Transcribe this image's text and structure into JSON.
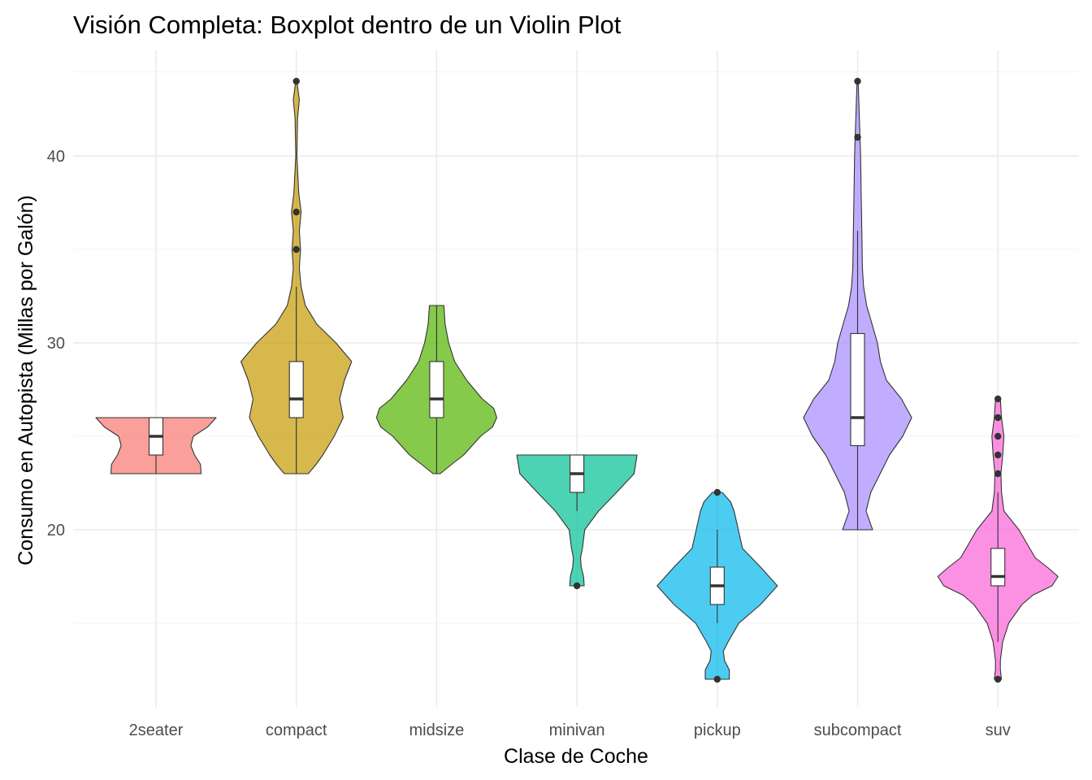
{
  "chart_data": {
    "type": "violin",
    "title": "Visión Completa: Boxplot dentro de un Violin Plot",
    "xlabel": "Clase de Coche",
    "ylabel": "Consumo en Autopista (Millas por Galón)",
    "ylim": [
      11,
      45
    ],
    "yticks": [
      20,
      30,
      40
    ],
    "grid": true,
    "legend": "none",
    "categories": [
      "2seater",
      "compact",
      "midsize",
      "minivan",
      "pickup",
      "subcompact",
      "suv"
    ],
    "series": [
      {
        "color": "#F8766D",
        "min": 23,
        "max": 26,
        "whisker_low": 23,
        "q1": 24,
        "median": 25,
        "q3": 26,
        "whisker_high": 26,
        "outliers": [],
        "density": [
          [
            23,
            0.75
          ],
          [
            23.5,
            0.74
          ],
          [
            24,
            0.64
          ],
          [
            24.5,
            0.58
          ],
          [
            25,
            0.62
          ],
          [
            25.5,
            0.86
          ],
          [
            26,
            1.0
          ]
        ]
      },
      {
        "color": "#C49A00",
        "min": 23,
        "max": 44,
        "whisker_low": 23,
        "q1": 26,
        "median": 27,
        "q3": 29,
        "whisker_high": 33,
        "outliers": [
          35,
          37,
          44
        ],
        "density": [
          [
            23,
            0.2
          ],
          [
            23.5,
            0.33
          ],
          [
            24,
            0.44
          ],
          [
            25,
            0.63
          ],
          [
            26,
            0.78
          ],
          [
            27,
            0.72
          ],
          [
            28,
            0.8
          ],
          [
            29,
            0.92
          ],
          [
            30,
            0.66
          ],
          [
            31,
            0.34
          ],
          [
            32,
            0.15
          ],
          [
            33,
            0.08
          ],
          [
            34,
            0.05
          ],
          [
            35,
            0.07
          ],
          [
            36,
            0.05
          ],
          [
            37,
            0.08
          ],
          [
            38,
            0.04
          ],
          [
            40,
            0.01
          ],
          [
            42,
            0.02
          ],
          [
            43,
            0.05
          ],
          [
            44,
            0.01
          ]
        ]
      },
      {
        "color": "#53B400",
        "min": 23,
        "max": 32,
        "whisker_low": 23,
        "q1": 26,
        "median": 27,
        "q3": 29,
        "whisker_high": 32,
        "outliers": [],
        "density": [
          [
            23,
            0.06
          ],
          [
            23.5,
            0.25
          ],
          [
            24,
            0.45
          ],
          [
            25,
            0.73
          ],
          [
            25.5,
            0.93
          ],
          [
            26,
            1.0
          ],
          [
            26.5,
            0.95
          ],
          [
            27,
            0.76
          ],
          [
            28,
            0.5
          ],
          [
            29,
            0.3
          ],
          [
            30,
            0.2
          ],
          [
            31,
            0.14
          ],
          [
            32,
            0.12
          ]
        ]
      },
      {
        "color": "#00C094",
        "min": 17,
        "max": 24,
        "whisker_low": 21,
        "q1": 22,
        "median": 23,
        "q3": 24,
        "whisker_high": 24,
        "outliers": [
          17
        ],
        "density": [
          [
            17,
            0.12
          ],
          [
            17.5,
            0.11
          ],
          [
            18,
            0.07
          ],
          [
            18.5,
            0.06
          ],
          [
            19,
            0.09
          ],
          [
            20,
            0.13
          ],
          [
            21,
            0.36
          ],
          [
            22,
            0.66
          ],
          [
            23,
            0.95
          ],
          [
            24,
            1.0
          ]
        ]
      },
      {
        "color": "#00B6EB",
        "min": 12,
        "max": 22,
        "whisker_low": 15,
        "q1": 16,
        "median": 17,
        "q3": 18,
        "whisker_high": 20,
        "outliers": [
          12,
          22
        ],
        "density": [
          [
            12,
            0.2
          ],
          [
            12.5,
            0.2
          ],
          [
            13,
            0.12
          ],
          [
            13.5,
            0.1
          ],
          [
            14,
            0.18
          ],
          [
            15,
            0.36
          ],
          [
            16,
            0.72
          ],
          [
            17,
            1.0
          ],
          [
            18,
            0.72
          ],
          [
            19,
            0.42
          ],
          [
            20,
            0.35
          ],
          [
            21,
            0.28
          ],
          [
            21.5,
            0.22
          ],
          [
            22,
            0.08
          ]
        ]
      },
      {
        "color": "#A58AFF",
        "min": 20,
        "max": 44,
        "whisker_low": 20,
        "q1": 24.5,
        "median": 26,
        "q3": 30.5,
        "whisker_high": 36,
        "outliers": [
          41,
          44
        ],
        "density": [
          [
            20,
            0.25
          ],
          [
            21,
            0.14
          ],
          [
            22,
            0.22
          ],
          [
            24,
            0.53
          ],
          [
            25,
            0.75
          ],
          [
            26,
            0.9
          ],
          [
            27,
            0.73
          ],
          [
            28,
            0.48
          ],
          [
            29,
            0.38
          ],
          [
            30,
            0.33
          ],
          [
            31,
            0.24
          ],
          [
            32,
            0.15
          ],
          [
            33,
            0.1
          ],
          [
            34,
            0.08
          ],
          [
            36,
            0.07
          ],
          [
            38,
            0.06
          ],
          [
            40,
            0.05
          ],
          [
            41,
            0.04
          ],
          [
            42,
            0.03
          ],
          [
            44,
            0.01
          ]
        ]
      },
      {
        "color": "#FB61D7",
        "min": 12,
        "max": 27,
        "whisker_low": 14,
        "q1": 17,
        "median": 17.5,
        "q3": 19,
        "whisker_high": 22,
        "outliers": [
          12,
          23,
          24,
          25,
          26,
          27
        ],
        "density": [
          [
            12,
            0.06
          ],
          [
            12.5,
            0.04
          ],
          [
            13,
            0.04
          ],
          [
            14,
            0.08
          ],
          [
            15,
            0.18
          ],
          [
            16,
            0.4
          ],
          [
            16.5,
            0.58
          ],
          [
            17,
            0.9
          ],
          [
            17.5,
            1.0
          ],
          [
            18,
            0.82
          ],
          [
            18.5,
            0.62
          ],
          [
            19,
            0.53
          ],
          [
            20,
            0.35
          ],
          [
            21,
            0.1
          ],
          [
            22,
            0.06
          ],
          [
            23,
            0.05
          ],
          [
            24,
            0.08
          ],
          [
            25,
            0.1
          ],
          [
            26,
            0.06
          ],
          [
            27,
            0.04
          ]
        ]
      }
    ]
  }
}
